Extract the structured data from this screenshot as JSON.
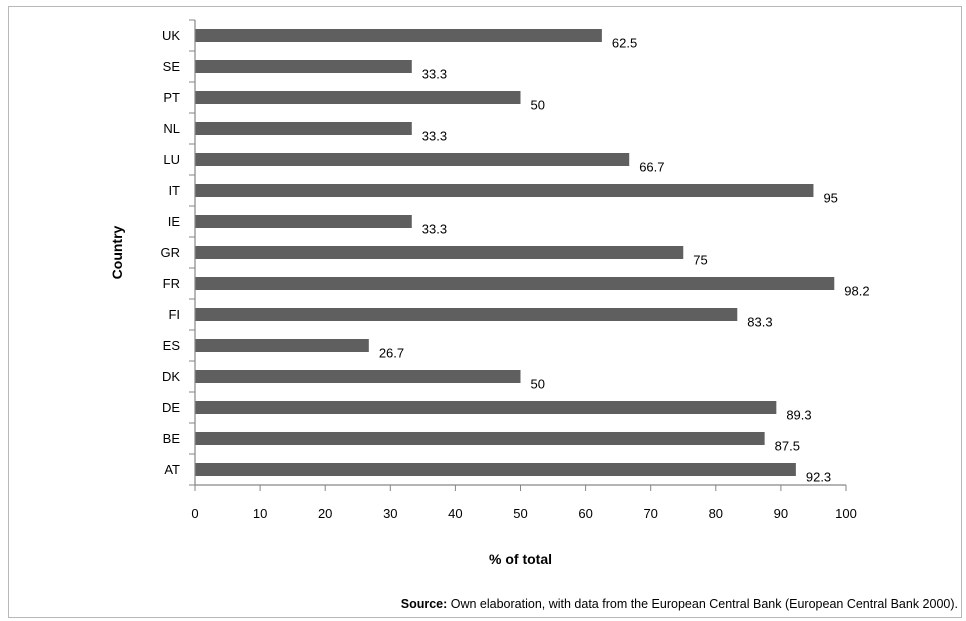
{
  "chart_data": {
    "type": "bar",
    "orientation": "horizontal",
    "categories": [
      "UK",
      "SE",
      "PT",
      "NL",
      "LU",
      "IT",
      "IE",
      "GR",
      "FR",
      "FI",
      "ES",
      "DK",
      "DE",
      "BE",
      "AT"
    ],
    "values": [
      62.5,
      33.3,
      50,
      33.3,
      66.7,
      95,
      33.3,
      75,
      98.2,
      83.3,
      26.7,
      50,
      89.3,
      87.5,
      92.3
    ],
    "value_labels": [
      "62.5",
      "33.3",
      "50",
      "33.3",
      "66.7",
      "95",
      "33.3",
      "75",
      "98.2",
      "83.3",
      "26.7",
      "50",
      "89.3",
      "87.5",
      "92.3"
    ],
    "xlabel": "% of total",
    "ylabel": "Country",
    "xlim": [
      0,
      100
    ],
    "xticks": [
      "0",
      "10",
      "20",
      "30",
      "40",
      "50",
      "60",
      "70",
      "80",
      "90",
      "100"
    ],
    "grid": false,
    "legend": "none",
    "bar_color": "#5f5f5f"
  },
  "source": {
    "label": "Source:",
    "text": " Own elaboration, with data from the European Central Bank (European Central Bank 2000)."
  }
}
